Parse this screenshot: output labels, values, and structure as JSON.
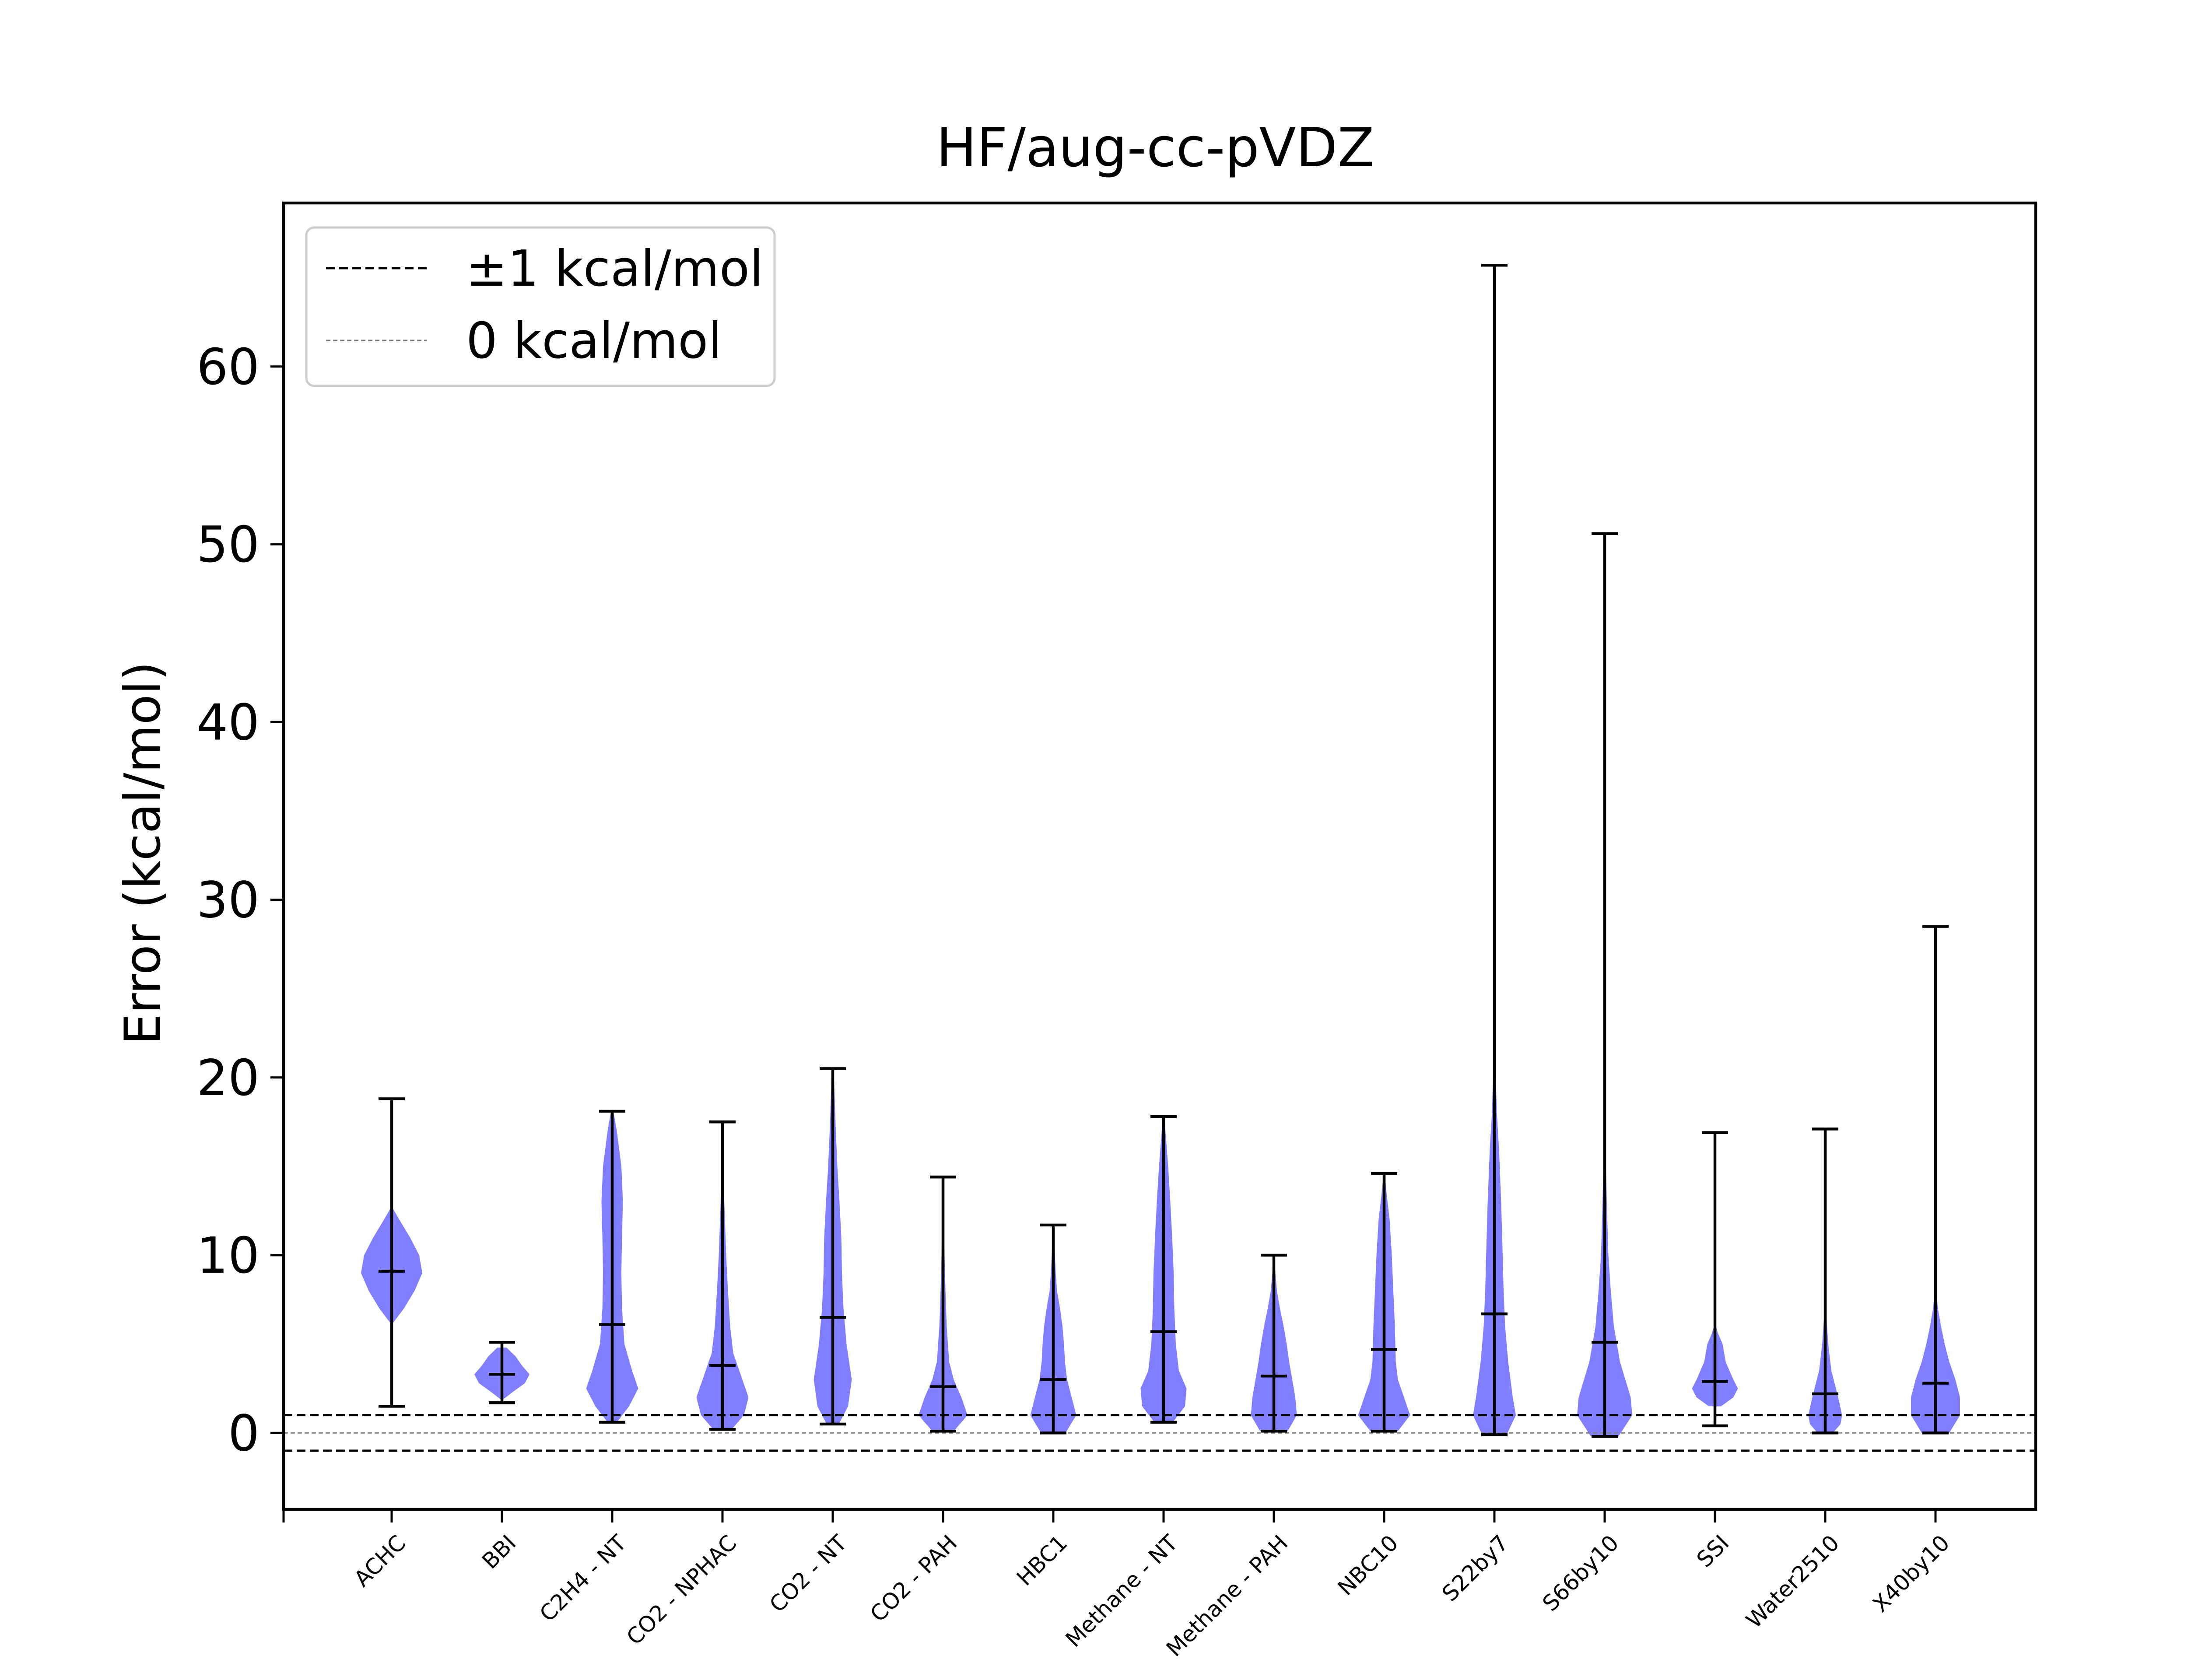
{
  "chart_data": {
    "type": "violin",
    "title": "HF/aug-cc-pVDZ",
    "xlabel": "",
    "ylabel": "Error (kcal/mol)",
    "ylim": [
      -4.3,
      69.2
    ],
    "yticks": [
      0,
      10,
      20,
      30,
      40,
      50,
      60
    ],
    "grid": false,
    "legend": {
      "placement": "top-left",
      "entries": [
        {
          "label": "±1 kcal/mol",
          "style": "dashed",
          "color": "#000000"
        },
        {
          "label": "0 kcal/mol",
          "style": "dashed-thin",
          "color": "#808080"
        }
      ]
    },
    "reference_lines": [
      1,
      -1,
      0
    ],
    "violin_color": "#7f7fff",
    "categories": [
      "ACHC",
      "BBI",
      "C2H4 - NT",
      "CO2 - NPHAC",
      "CO2 - NT",
      "CO2 - PAH",
      "HBC1",
      "Methane - NT",
      "Methane - PAH",
      "NBC10",
      "S22by7",
      "S66by10",
      "SSI",
      "Water2510",
      "X40by10"
    ],
    "series": [
      {
        "min": 1.5,
        "max": 18.8,
        "mean": 9.1,
        "density": [
          [
            6.2,
            0.05
          ],
          [
            7.0,
            0.4
          ],
          [
            8.0,
            0.75
          ],
          [
            9.0,
            1.0
          ],
          [
            10.0,
            0.9
          ],
          [
            11.0,
            0.6
          ],
          [
            12.0,
            0.25
          ],
          [
            12.6,
            0.05
          ]
        ]
      },
      {
        "min": 1.7,
        "max": 5.1,
        "mean": 3.3,
        "density": [
          [
            1.9,
            0.05
          ],
          [
            2.3,
            0.35
          ],
          [
            2.8,
            0.75
          ],
          [
            3.3,
            0.9
          ],
          [
            3.8,
            0.65
          ],
          [
            4.3,
            0.45
          ],
          [
            4.8,
            0.15
          ]
        ]
      },
      {
        "min": 0.6,
        "max": 18.1,
        "mean": 6.1,
        "density": [
          [
            0.6,
            0.15
          ],
          [
            1.5,
            0.55
          ],
          [
            2.5,
            0.85
          ],
          [
            3.5,
            0.65
          ],
          [
            5,
            0.4
          ],
          [
            7,
            0.32
          ],
          [
            9,
            0.3
          ],
          [
            11,
            0.32
          ],
          [
            13,
            0.35
          ],
          [
            15,
            0.3
          ],
          [
            17,
            0.15
          ],
          [
            18,
            0.05
          ]
        ]
      },
      {
        "min": 0.2,
        "max": 17.5,
        "mean": 3.8,
        "density": [
          [
            0.2,
            0.3
          ],
          [
            1,
            0.7
          ],
          [
            2,
            0.85
          ],
          [
            3,
            0.65
          ],
          [
            4.5,
            0.35
          ],
          [
            6,
            0.25
          ],
          [
            8,
            0.18
          ],
          [
            10,
            0.12
          ],
          [
            12,
            0.08
          ],
          [
            14,
            0.04
          ],
          [
            17,
            0.02
          ]
        ]
      },
      {
        "min": 0.5,
        "max": 20.5,
        "mean": 6.5,
        "density": [
          [
            0.5,
            0.2
          ],
          [
            1.5,
            0.5
          ],
          [
            3,
            0.62
          ],
          [
            5,
            0.45
          ],
          [
            7,
            0.35
          ],
          [
            9,
            0.3
          ],
          [
            11,
            0.28
          ],
          [
            13,
            0.22
          ],
          [
            15,
            0.15
          ],
          [
            17,
            0.1
          ],
          [
            19,
            0.06
          ],
          [
            20.5,
            0.03
          ]
        ]
      },
      {
        "min": 0.1,
        "max": 14.4,
        "mean": 2.6,
        "density": [
          [
            0.1,
            0.35
          ],
          [
            1,
            0.8
          ],
          [
            2,
            0.6
          ],
          [
            3,
            0.35
          ],
          [
            4,
            0.2
          ],
          [
            6,
            0.12
          ],
          [
            8,
            0.08
          ],
          [
            10,
            0.05
          ],
          [
            12,
            0.03
          ],
          [
            14.4,
            0.01
          ]
        ]
      },
      {
        "min": 0.0,
        "max": 11.7,
        "mean": 3.0,
        "density": [
          [
            0,
            0.4
          ],
          [
            1,
            0.75
          ],
          [
            2,
            0.6
          ],
          [
            3,
            0.45
          ],
          [
            4,
            0.38
          ],
          [
            5,
            0.35
          ],
          [
            6,
            0.3
          ],
          [
            7,
            0.22
          ],
          [
            8,
            0.12
          ],
          [
            9,
            0.08
          ],
          [
            10.5,
            0.04
          ],
          [
            11.7,
            0.01
          ]
        ]
      },
      {
        "min": 0.6,
        "max": 17.8,
        "mean": 5.7,
        "density": [
          [
            0.6,
            0.3
          ],
          [
            1.5,
            0.7
          ],
          [
            2.5,
            0.75
          ],
          [
            3.5,
            0.5
          ],
          [
            5,
            0.4
          ],
          [
            7,
            0.35
          ],
          [
            9,
            0.33
          ],
          [
            11,
            0.28
          ],
          [
            13,
            0.22
          ],
          [
            15,
            0.15
          ],
          [
            17,
            0.06
          ],
          [
            17.8,
            0.02
          ]
        ]
      },
      {
        "min": 0.1,
        "max": 10.0,
        "mean": 3.2,
        "density": [
          [
            0.1,
            0.45
          ],
          [
            1,
            0.75
          ],
          [
            2,
            0.7
          ],
          [
            3,
            0.6
          ],
          [
            4,
            0.5
          ],
          [
            5,
            0.42
          ],
          [
            6,
            0.32
          ],
          [
            7,
            0.2
          ],
          [
            8,
            0.1
          ],
          [
            9,
            0.05
          ],
          [
            10,
            0.01
          ]
        ]
      },
      {
        "min": 0.1,
        "max": 14.6,
        "mean": 4.7,
        "density": [
          [
            0.1,
            0.45
          ],
          [
            1,
            0.85
          ],
          [
            2,
            0.65
          ],
          [
            3,
            0.45
          ],
          [
            4,
            0.38
          ],
          [
            6,
            0.35
          ],
          [
            8,
            0.3
          ],
          [
            10,
            0.25
          ],
          [
            12,
            0.18
          ],
          [
            13.5,
            0.08
          ],
          [
            14.6,
            0.02
          ]
        ]
      },
      {
        "min": -0.1,
        "max": 65.7,
        "mean": 6.7,
        "density": [
          [
            -0.1,
            0.4
          ],
          [
            1,
            0.7
          ],
          [
            2,
            0.6
          ],
          [
            4,
            0.45
          ],
          [
            6,
            0.35
          ],
          [
            8,
            0.3
          ],
          [
            10,
            0.27
          ],
          [
            13,
            0.22
          ],
          [
            16,
            0.15
          ],
          [
            18,
            0.08
          ],
          [
            21,
            0.03
          ],
          [
            25,
            0.01
          ],
          [
            65.7,
            0.0
          ]
        ]
      },
      {
        "min": -0.2,
        "max": 50.6,
        "mean": 5.1,
        "density": [
          [
            -0.2,
            0.45
          ],
          [
            1,
            0.9
          ],
          [
            2,
            0.85
          ],
          [
            4,
            0.5
          ],
          [
            6,
            0.3
          ],
          [
            8,
            0.2
          ],
          [
            10,
            0.12
          ],
          [
            13,
            0.07
          ],
          [
            16,
            0.03
          ],
          [
            20,
            0.01
          ],
          [
            50.6,
            0.0
          ]
        ]
      },
      {
        "min": 0.4,
        "max": 16.9,
        "mean": 2.9,
        "density": [
          [
            1.5,
            0.2
          ],
          [
            2,
            0.6
          ],
          [
            2.5,
            0.75
          ],
          [
            3,
            0.6
          ],
          [
            4,
            0.35
          ],
          [
            5,
            0.25
          ],
          [
            5.6,
            0.1
          ],
          [
            6,
            0.03
          ],
          [
            16.9,
            0.0
          ]
        ]
      },
      {
        "min": 0.0,
        "max": 17.1,
        "mean": 2.2,
        "density": [
          [
            0,
            0.25
          ],
          [
            0.5,
            0.5
          ],
          [
            1,
            0.55
          ],
          [
            1.8,
            0.45
          ],
          [
            2.5,
            0.35
          ],
          [
            3.5,
            0.2
          ],
          [
            5,
            0.1
          ],
          [
            6,
            0.06
          ],
          [
            7,
            0.02
          ],
          [
            17.1,
            0.0
          ]
        ]
      },
      {
        "min": 0.0,
        "max": 28.5,
        "mean": 2.8,
        "density": [
          [
            0,
            0.45
          ],
          [
            1,
            0.8
          ],
          [
            2,
            0.8
          ],
          [
            3,
            0.65
          ],
          [
            4,
            0.45
          ],
          [
            5,
            0.3
          ],
          [
            6,
            0.18
          ],
          [
            7,
            0.08
          ],
          [
            8,
            0.02
          ],
          [
            28.5,
            0.0
          ]
        ]
      }
    ]
  }
}
